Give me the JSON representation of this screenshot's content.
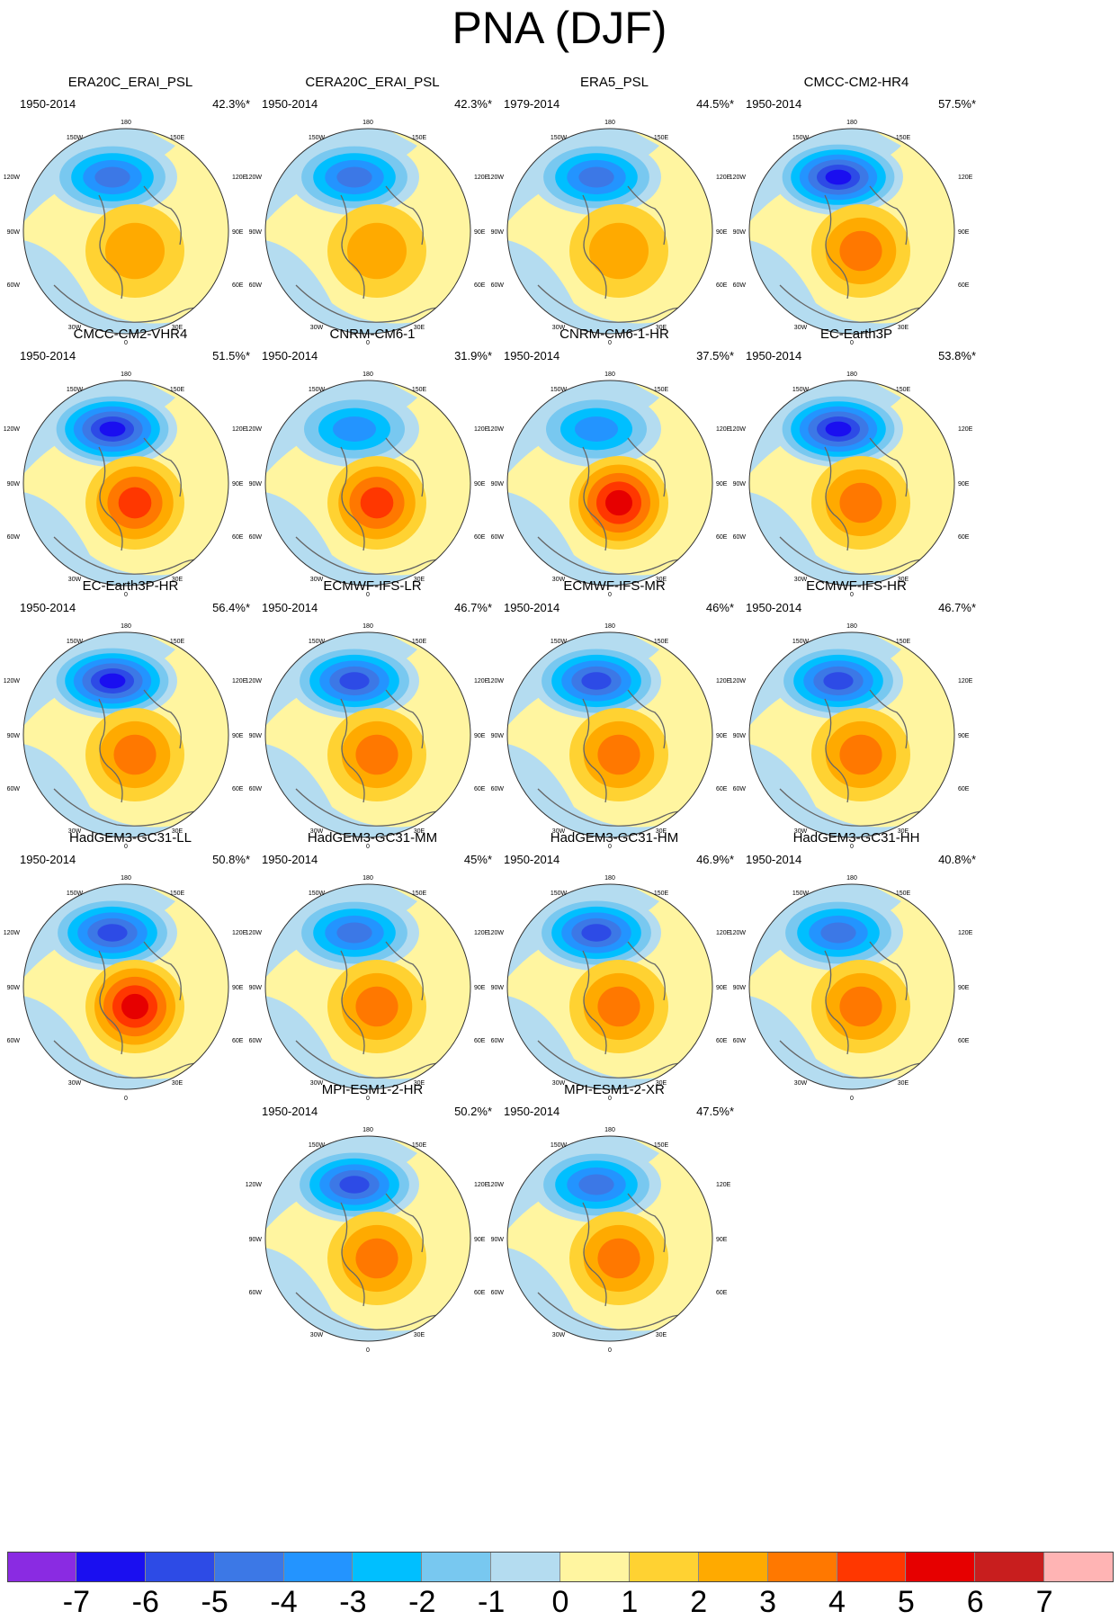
{
  "title": "PNA (DJF)",
  "map_labels": {
    "top": "180",
    "tl": "150W",
    "tr": "150E",
    "ul": "120W",
    "ur": "120E",
    "ml": "90W",
    "mr": "90E",
    "ll": "60W",
    "lr": "60E",
    "bl": "30W",
    "br": "30E",
    "bottom": "0"
  },
  "panels": [
    {
      "name": "ERA20C_ERAI_PSL",
      "period": "1950-2014",
      "pct": "42.3%*",
      "min": -5,
      "max": 2
    },
    {
      "name": "CERA20C_ERAI_PSL",
      "period": "1950-2014",
      "pct": "42.3%*",
      "min": -5,
      "max": 2
    },
    {
      "name": "ERA5_PSL",
      "period": "1979-2014",
      "pct": "44.5%*",
      "min": -5,
      "max": 2
    },
    {
      "name": "CMCC-CM2-HR4",
      "period": "1950-2014",
      "pct": "57.5%*",
      "min": -7,
      "max": 3
    },
    {
      "name": "CMCC-CM2-VHR4",
      "period": "1950-2014",
      "pct": "51.5%*",
      "min": -7,
      "max": 4
    },
    {
      "name": "CNRM-CM6-1",
      "period": "1950-2014",
      "pct": "31.9%*",
      "min": -4,
      "max": 4
    },
    {
      "name": "CNRM-CM6-1-HR",
      "period": "1950-2014",
      "pct": "37.5%*",
      "min": -4,
      "max": 5
    },
    {
      "name": "EC-Earth3P",
      "period": "1950-2014",
      "pct": "53.8%*",
      "min": -7,
      "max": 3
    },
    {
      "name": "EC-Earth3P-HR",
      "period": "1950-2014",
      "pct": "56.4%*",
      "min": -7,
      "max": 3
    },
    {
      "name": "ECMWF-IFS-LR",
      "period": "1950-2014",
      "pct": "46.7%*",
      "min": -6,
      "max": 3
    },
    {
      "name": "ECMWF-IFS-MR",
      "period": "1950-2014",
      "pct": "46%*",
      "min": -6,
      "max": 3
    },
    {
      "name": "ECMWF-IFS-HR",
      "period": "1950-2014",
      "pct": "46.7%*",
      "min": -6,
      "max": 3
    },
    {
      "name": "HadGEM3-GC31-LL",
      "period": "1950-2014",
      "pct": "50.8%*",
      "min": -6,
      "max": 5
    },
    {
      "name": "HadGEM3-GC31-MM",
      "period": "1950-2014",
      "pct": "45%*",
      "min": -5,
      "max": 3
    },
    {
      "name": "HadGEM3-GC31-HM",
      "period": "1950-2014",
      "pct": "46.9%*",
      "min": -6,
      "max": 3
    },
    {
      "name": "HadGEM3-GC31-HH",
      "period": "1950-2014",
      "pct": "40.8%*",
      "min": -5,
      "max": 3
    },
    {
      "name": "MPI-ESM1-2-HR",
      "period": "1950-2014",
      "pct": "50.2%*",
      "min": -6,
      "max": 3
    },
    {
      "name": "MPI-ESM1-2-XR",
      "period": "1950-2014",
      "pct": "47.5%*",
      "min": -5,
      "max": 3
    }
  ],
  "colorbar": {
    "colors": [
      "#8a2be2",
      "#1a0ff0",
      "#2d4be6",
      "#3c78e6",
      "#2394ff",
      "#00bfff",
      "#78c8f0",
      "#b4dcf0",
      "#fff5a0",
      "#ffd232",
      "#ffaa00",
      "#ff7800",
      "#ff3700",
      "#e60000",
      "#c81e1e",
      "#ffb4b4"
    ],
    "labels": [
      "-7",
      "-6",
      "-5",
      "-4",
      "-3",
      "-2",
      "-1",
      "0",
      "1",
      "2",
      "3",
      "4",
      "5",
      "6",
      "7"
    ]
  }
}
